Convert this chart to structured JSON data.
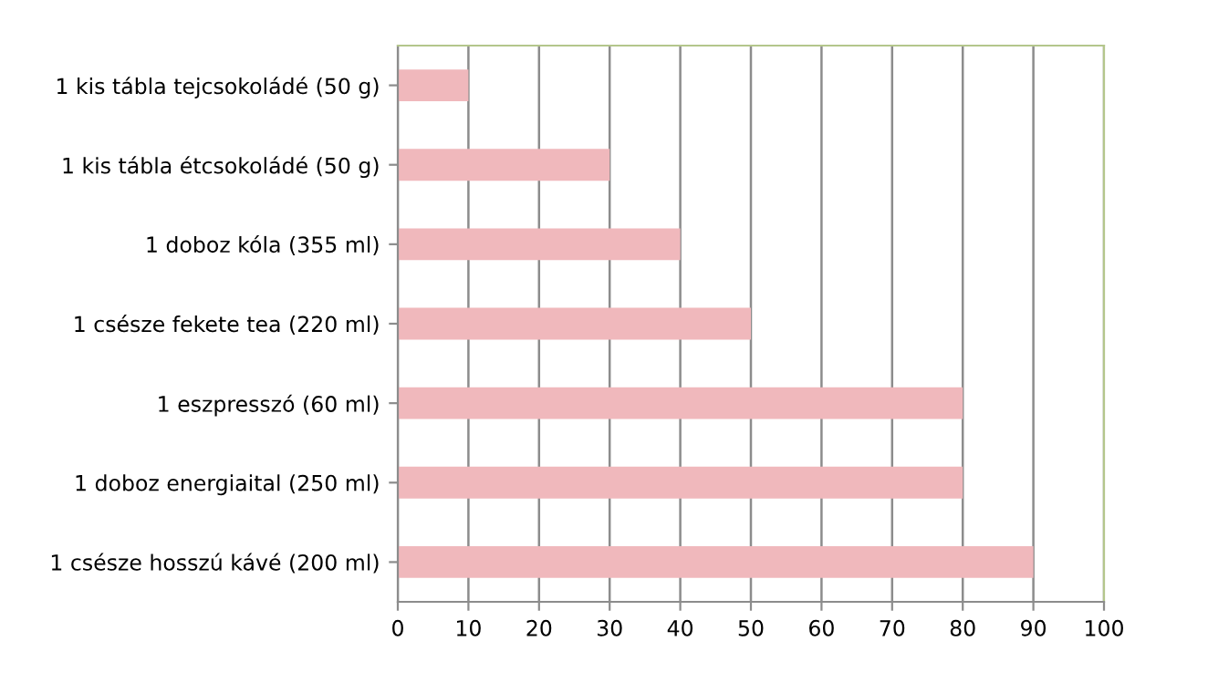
{
  "chart_data": {
    "type": "bar",
    "orientation": "horizontal",
    "categories": [
      "1 kis tábla tejcsokoládé (50 g)",
      "1 kis tábla étcsokoládé (50 g)",
      "1 doboz kóla (355 ml)",
      "1 csésze fekete tea (220 ml)",
      "1 eszpresszó (60 ml)",
      "1 doboz energiaital (250 ml)",
      "1 csésze hosszú kávé (200 ml)"
    ],
    "values": [
      10,
      30,
      40,
      50,
      80,
      80,
      90
    ],
    "color": "#f0b8bc",
    "xlim": [
      0,
      100
    ],
    "xticks": [
      0,
      10,
      20,
      30,
      40,
      50,
      60,
      70,
      80,
      90,
      100
    ],
    "grid": "x"
  }
}
